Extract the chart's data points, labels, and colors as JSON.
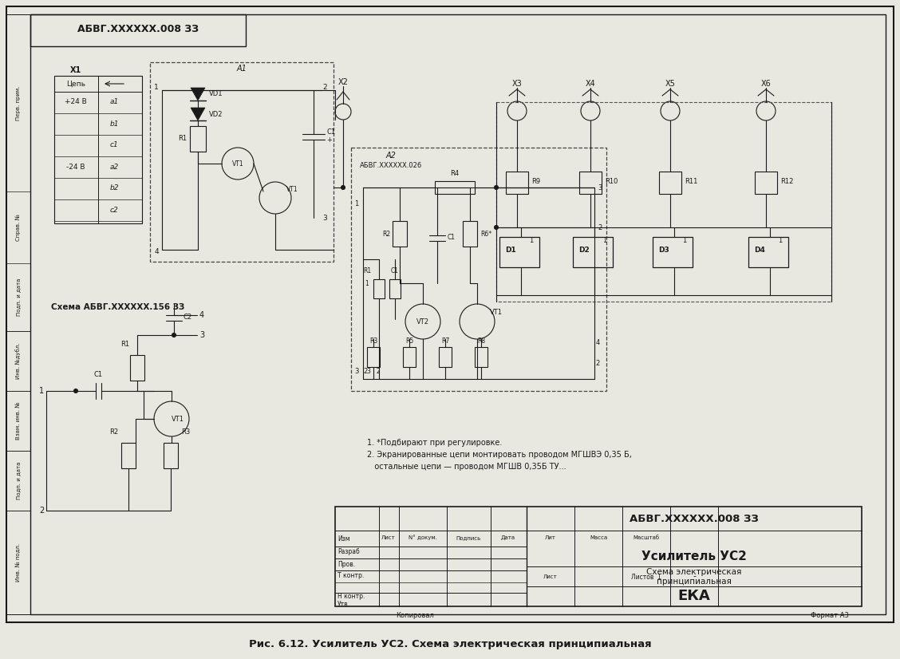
{
  "title": "Рис. 6.12. Усилитель УС2. Схема электрическая принципиальная",
  "bg_color": "#e8e8e0",
  "line_color": "#1a1a1a",
  "stamp_title": "АБВГ.XXXXXX.008 ЗЗ",
  "stamp_device": "Усилитель УС2",
  "stamp_schema": "Схема электрическая",
  "stamp_schema2": "принципиальная",
  "stamp_eka": "ЕКА",
  "stamp_list": "Лист",
  "stamp_listov": "Листов  1",
  "stamp_kopirov": "Копировал",
  "stamp_format": "Формат А3",
  "top_label": "АБВГ.XXXXXX.008 ЗЗ",
  "note1": "1. *Подбирают при регулировке.",
  "note2": "2. Экранированные цепи монтировать проводом МГШВЭ 0,35 Б,",
  "note3": "   остальные цепи — проводом МГШВ 0,35Б ТУ...",
  "schema_label": "Схема АБВГ.XXXXXX.156 ЗЗ",
  "a2_label": "АБВГ.XXXXXX.026",
  "a1_label": "A1",
  "a2_box_label": "A2"
}
